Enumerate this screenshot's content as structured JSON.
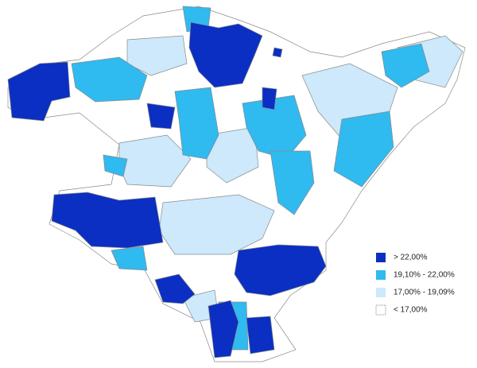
{
  "legend": {
    "items": [
      {
        "label": "> 22,00%",
        "color": "#0a2fc2"
      },
      {
        "label": "19,10% - 22,00%",
        "color": "#2fbaf0"
      },
      {
        "label": "17,00% - 19,09%",
        "color": "#cde9fb"
      },
      {
        "label": "< 17,00%",
        "color": "#ffffff"
      }
    ]
  }
}
